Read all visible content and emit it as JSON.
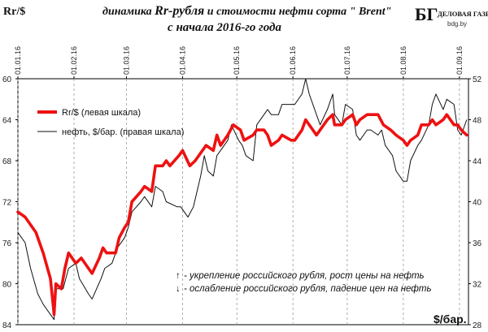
{
  "header": {
    "ylabel_left": "Rr/$",
    "title_part1": "динамика ",
    "title_part2": "Rr-рубля",
    "title_part3": " и стоимости нефти сорта \" Brent\"",
    "title_line2": "с начала 2016-го года"
  },
  "logo": {
    "mark": "БГ",
    "name": "ДЕЛОВАЯ ГАЗЕТА",
    "site": "bdg.by"
  },
  "colors": {
    "ruble_line": "#ee1111",
    "oil_line": "#111111",
    "axis": "#000000",
    "grid": "#9a9a9a"
  },
  "notes": {
    "arrow_up": "↑",
    "arrow_down": "↓",
    "line1": " - укрепление российского рубля, рост цены на нефть",
    "line2": " - ослабление российского рубля, падение цен на нефть"
  },
  "chart_data": {
    "type": "line",
    "title": "динамика Rr-рубля и стоимости нефти сорта \" Brent\" с начала 2016-го года",
    "xlabel": "",
    "ylabel": "Rr/$",
    "y2label": "$/бар.",
    "x_ticks": [
      "01.01.16",
      "01.02.16",
      "01.03.16",
      "01.04.16",
      "01.05.16",
      "01.06.16",
      "01.07.16",
      "01.08.16",
      "01.09.16"
    ],
    "y_left": {
      "min": 60,
      "max": 84,
      "inverted": true,
      "ticks": [
        "60",
        "64",
        "68",
        "72",
        "76",
        "80",
        "84"
      ]
    },
    "y_right": {
      "min": 28,
      "max": 52,
      "ticks": [
        "52",
        "48",
        "44",
        "40",
        "36",
        "32",
        "28"
      ]
    },
    "grid": "dashed vertical at month starts",
    "legend_position": "top-left",
    "series": [
      {
        "name": "Rr/$  (левая шкала)",
        "axis": "left",
        "points": [
          [
            "01.01.16",
            73.0
          ],
          [
            "05.01.16",
            73.5
          ],
          [
            "11.01.16",
            75.0
          ],
          [
            "15.01.16",
            77.0
          ],
          [
            "19.01.16",
            79.5
          ],
          [
            "21.01.16",
            83.0
          ],
          [
            "22.01.16",
            80.0
          ],
          [
            "25.01.16",
            80.5
          ],
          [
            "27.01.16",
            78.5
          ],
          [
            "29.01.16",
            77.0
          ],
          [
            "02.02.16",
            78.0
          ],
          [
            "05.02.16",
            77.5
          ],
          [
            "09.02.16",
            78.5
          ],
          [
            "11.02.16",
            79.0
          ],
          [
            "15.02.16",
            77.5
          ],
          [
            "17.02.16",
            76.5
          ],
          [
            "19.02.16",
            77.0
          ],
          [
            "24.02.16",
            77.0
          ],
          [
            "26.02.16",
            75.5
          ],
          [
            "29.02.16",
            74.5
          ],
          [
            "02.03.16",
            74.0
          ],
          [
            "04.03.16",
            72.0
          ],
          [
            "09.03.16",
            71.0
          ],
          [
            "11.03.16",
            70.5
          ],
          [
            "15.03.16",
            71.0
          ],
          [
            "17.03.16",
            68.5
          ],
          [
            "21.03.16",
            68.5
          ],
          [
            "23.03.16",
            68.0
          ],
          [
            "25.03.16",
            68.5
          ],
          [
            "30.03.16",
            67.5
          ],
          [
            "01.04.16",
            67.0
          ],
          [
            "05.04.16",
            68.5
          ],
          [
            "08.04.16",
            68.0
          ],
          [
            "12.04.16",
            67.0
          ],
          [
            "14.04.16",
            66.5
          ],
          [
            "18.04.16",
            67.0
          ],
          [
            "20.04.16",
            65.5
          ],
          [
            "22.04.16",
            66.5
          ],
          [
            "26.04.16",
            65.5
          ],
          [
            "29.04.16",
            64.5
          ],
          [
            "03.05.16",
            65.0
          ],
          [
            "05.05.16",
            66.0
          ],
          [
            "10.05.16",
            65.5
          ],
          [
            "12.05.16",
            65.0
          ],
          [
            "16.05.16",
            65.0
          ],
          [
            "18.05.16",
            65.5
          ],
          [
            "20.05.16",
            66.5
          ],
          [
            "24.05.16",
            66.0
          ],
          [
            "26.05.16",
            65.5
          ],
          [
            "31.05.16",
            66.0
          ],
          [
            "02.06.16",
            66.0
          ],
          [
            "06.06.16",
            65.0
          ],
          [
            "08.06.16",
            64.0
          ],
          [
            "10.06.16",
            64.5
          ],
          [
            "14.06.16",
            65.5
          ],
          [
            "16.06.16",
            65.0
          ],
          [
            "20.06.16",
            64.0
          ],
          [
            "23.06.16",
            63.5
          ],
          [
            "24.06.16",
            64.5
          ],
          [
            "28.06.16",
            64.5
          ],
          [
            "30.06.16",
            64.0
          ],
          [
            "04.07.16",
            63.5
          ],
          [
            "06.07.16",
            64.5
          ],
          [
            "08.07.16",
            64.0
          ],
          [
            "12.07.16",
            63.5
          ],
          [
            "14.07.16",
            63.5
          ],
          [
            "18.07.16",
            63.5
          ],
          [
            "21.07.16",
            64.5
          ],
          [
            "25.07.16",
            65.0
          ],
          [
            "28.07.16",
            65.5
          ],
          [
            "01.08.16",
            66.0
          ],
          [
            "03.08.16",
            66.5
          ],
          [
            "05.08.16",
            66.0
          ],
          [
            "09.08.16",
            65.5
          ],
          [
            "11.08.16",
            64.5
          ],
          [
            "15.08.16",
            64.5
          ],
          [
            "17.08.16",
            64.0
          ],
          [
            "19.08.16",
            64.5
          ],
          [
            "23.08.16",
            64.0
          ],
          [
            "25.08.16",
            63.5
          ],
          [
            "29.08.16",
            64.5
          ],
          [
            "31.08.16",
            64.5
          ],
          [
            "02.09.16",
            65.0
          ],
          [
            "05.09.16",
            65.5
          ]
        ]
      },
      {
        "name": "нефть, $/бар. (правая шкала)",
        "axis": "right",
        "points": [
          [
            "01.01.16",
            37.0
          ],
          [
            "05.01.16",
            36.0
          ],
          [
            "08.01.16",
            33.5
          ],
          [
            "12.01.16",
            31.0
          ],
          [
            "15.01.16",
            30.0
          ],
          [
            "19.01.16",
            29.0
          ],
          [
            "21.01.16",
            28.5
          ],
          [
            "22.01.16",
            31.5
          ],
          [
            "26.01.16",
            31.5
          ],
          [
            "29.01.16",
            33.5
          ],
          [
            "02.02.16",
            34.0
          ],
          [
            "04.02.16",
            32.5
          ],
          [
            "09.02.16",
            31.0
          ],
          [
            "11.02.16",
            30.5
          ],
          [
            "16.02.16",
            32.5
          ],
          [
            "18.02.16",
            33.5
          ],
          [
            "22.02.16",
            34.0
          ],
          [
            "25.02.16",
            35.5
          ],
          [
            "29.02.16",
            36.5
          ],
          [
            "02.03.16",
            37.5
          ],
          [
            "04.03.16",
            39.0
          ],
          [
            "09.03.16",
            40.0
          ],
          [
            "11.03.16",
            40.5
          ],
          [
            "15.03.16",
            39.5
          ],
          [
            "17.03.16",
            41.5
          ],
          [
            "21.03.16",
            41.0
          ],
          [
            "23.03.16",
            40.0
          ],
          [
            "29.03.16",
            39.5
          ],
          [
            "31.03.16",
            39.5
          ],
          [
            "04.04.16",
            38.5
          ],
          [
            "07.04.16",
            39.5
          ],
          [
            "11.04.16",
            42.5
          ],
          [
            "13.04.16",
            44.5
          ],
          [
            "15.04.16",
            43.0
          ],
          [
            "18.04.16",
            42.5
          ],
          [
            "20.04.16",
            44.5
          ],
          [
            "22.04.16",
            45.0
          ],
          [
            "26.04.16",
            46.0
          ],
          [
            "28.04.16",
            47.5
          ],
          [
            "02.05.16",
            46.0
          ],
          [
            "04.05.16",
            45.5
          ],
          [
            "06.05.16",
            44.5
          ],
          [
            "10.05.16",
            44.0
          ],
          [
            "12.05.16",
            47.5
          ],
          [
            "16.05.16",
            48.5
          ],
          [
            "18.05.16",
            49.0
          ],
          [
            "20.05.16",
            48.5
          ],
          [
            "24.05.16",
            48.5
          ],
          [
            "26.05.16",
            49.5
          ],
          [
            "31.05.16",
            49.5
          ],
          [
            "02.06.16",
            49.5
          ],
          [
            "06.06.16",
            50.5
          ],
          [
            "08.06.16",
            52.0
          ],
          [
            "10.06.16",
            50.5
          ],
          [
            "14.06.16",
            48.5
          ],
          [
            "16.06.16",
            47.5
          ],
          [
            "20.06.16",
            49.0
          ],
          [
            "23.06.16",
            50.5
          ],
          [
            "24.06.16",
            48.5
          ],
          [
            "28.06.16",
            47.5
          ],
          [
            "30.06.16",
            49.5
          ],
          [
            "04.07.16",
            49.0
          ],
          [
            "06.07.16",
            46.5
          ],
          [
            "08.07.16",
            46.0
          ],
          [
            "12.07.16",
            47.0
          ],
          [
            "14.07.16",
            47.0
          ],
          [
            "18.07.16",
            46.5
          ],
          [
            "20.07.16",
            47.0
          ],
          [
            "22.07.16",
            45.5
          ],
          [
            "26.07.16",
            44.5
          ],
          [
            "28.07.16",
            43.0
          ],
          [
            "01.08.16",
            42.0
          ],
          [
            "03.08.16",
            42.0
          ],
          [
            "05.08.16",
            44.0
          ],
          [
            "09.08.16",
            45.5
          ],
          [
            "11.08.16",
            46.0
          ],
          [
            "15.08.16",
            47.5
          ],
          [
            "17.08.16",
            49.5
          ],
          [
            "19.08.16",
            50.5
          ],
          [
            "23.08.16",
            49.0
          ],
          [
            "25.08.16",
            50.0
          ],
          [
            "29.08.16",
            49.5
          ],
          [
            "31.08.16",
            47.0
          ],
          [
            "02.09.16",
            46.5
          ],
          [
            "05.09.16",
            48.0
          ]
        ]
      }
    ]
  }
}
